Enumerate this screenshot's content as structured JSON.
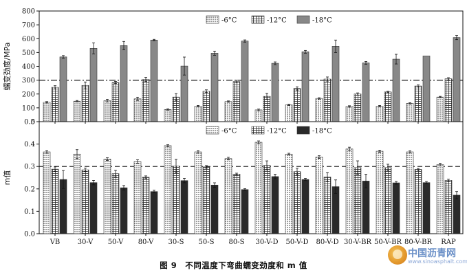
{
  "caption": "图 9　不同温度下弯曲蠕变劲度和 m 值",
  "watermark": {
    "title": "中国沥青网",
    "url": "www.sinoasphalt.com"
  },
  "chart_data": [
    {
      "type": "bar",
      "ylabel": "蠕变劲度/MPa",
      "ylim": [
        0,
        800
      ],
      "yticks": [
        0,
        100,
        200,
        300,
        400,
        500,
        600,
        700,
        800
      ],
      "reference_line": 300,
      "legend_position": "top",
      "categories": [
        "VB",
        "30-V",
        "50-V",
        "80-V",
        "30-S",
        "50-S",
        "80-S",
        "30-V-D",
        "50-V-D",
        "80-V-D",
        "30-V-BR",
        "50-V-BR",
        "80-V-BR",
        "RAP"
      ],
      "series": [
        {
          "name": "-6°C",
          "pattern": "dots",
          "values": [
            140,
            148,
            152,
            165,
            88,
            112,
            145,
            85,
            122,
            168,
            110,
            112,
            132,
            178
          ],
          "errors": [
            5,
            5,
            10,
            12,
            5,
            5,
            5,
            6,
            5,
            5,
            5,
            5,
            5,
            5
          ]
        },
        {
          "name": "-12°C",
          "pattern": "grid",
          "values": [
            248,
            262,
            283,
            305,
            178,
            220,
            290,
            183,
            240,
            308,
            200,
            215,
            258,
            310
          ],
          "errors": [
            12,
            25,
            8,
            15,
            25,
            10,
            10,
            22,
            12,
            15,
            8,
            5,
            8,
            8
          ]
        },
        {
          "name": "-18°C",
          "pattern": "gray",
          "values": [
            468,
            530,
            550,
            590,
            402,
            495,
            583,
            422,
            505,
            545,
            425,
            452,
            475,
            608
          ],
          "errors": [
            10,
            40,
            30,
            5,
            65,
            15,
            8,
            10,
            10,
            45,
            10,
            35,
            0,
            15
          ]
        }
      ]
    },
    {
      "type": "bar",
      "ylabel": "m值",
      "ylim": [
        0,
        0.5
      ],
      "yticks": [
        0.0,
        0.1,
        0.2,
        0.3,
        0.4,
        0.5
      ],
      "reference_line": 0.3,
      "legend_position": "top",
      "categories": [
        "VB",
        "30-V",
        "50-V",
        "80-V",
        "30-S",
        "50-S",
        "80-S",
        "30-V-D",
        "50-V-D",
        "80-V-D",
        "30-V-BR",
        "50-V-BR",
        "80-V-BR",
        "RAP"
      ],
      "series": [
        {
          "name": "-6°C",
          "pattern": "dots",
          "values": [
            0.365,
            0.355,
            0.333,
            0.322,
            0.393,
            0.365,
            0.335,
            0.408,
            0.355,
            0.342,
            0.378,
            0.368,
            0.365,
            0.308
          ],
          "errors": [
            0.006,
            0.02,
            0.006,
            0.008,
            0.004,
            0.006,
            0.006,
            0.006,
            0.004,
            0.006,
            0.008,
            0.005,
            0.005,
            0.006
          ]
        },
        {
          "name": "-12°C",
          "pattern": "grid",
          "values": [
            0.288,
            0.285,
            0.268,
            0.252,
            0.302,
            0.298,
            0.266,
            0.305,
            0.277,
            0.253,
            0.295,
            0.295,
            0.287,
            0.238
          ],
          "errors": [
            0.01,
            0.008,
            0.015,
            0.006,
            0.03,
            0.006,
            0.004,
            0.02,
            0.015,
            0.02,
            0.03,
            0.015,
            0.004,
            0.005
          ]
        },
        {
          "name": "-18°C",
          "pattern": "black",
          "values": [
            0.242,
            0.228,
            0.205,
            0.188,
            0.237,
            0.217,
            0.197,
            0.255,
            0.242,
            0.21,
            0.235,
            0.227,
            0.228,
            0.172
          ],
          "errors": [
            0.04,
            0.01,
            0.01,
            0.006,
            0.01,
            0.01,
            0.004,
            0.01,
            0.005,
            0.03,
            0.03,
            0.006,
            0.005,
            0.016
          ]
        }
      ]
    }
  ]
}
